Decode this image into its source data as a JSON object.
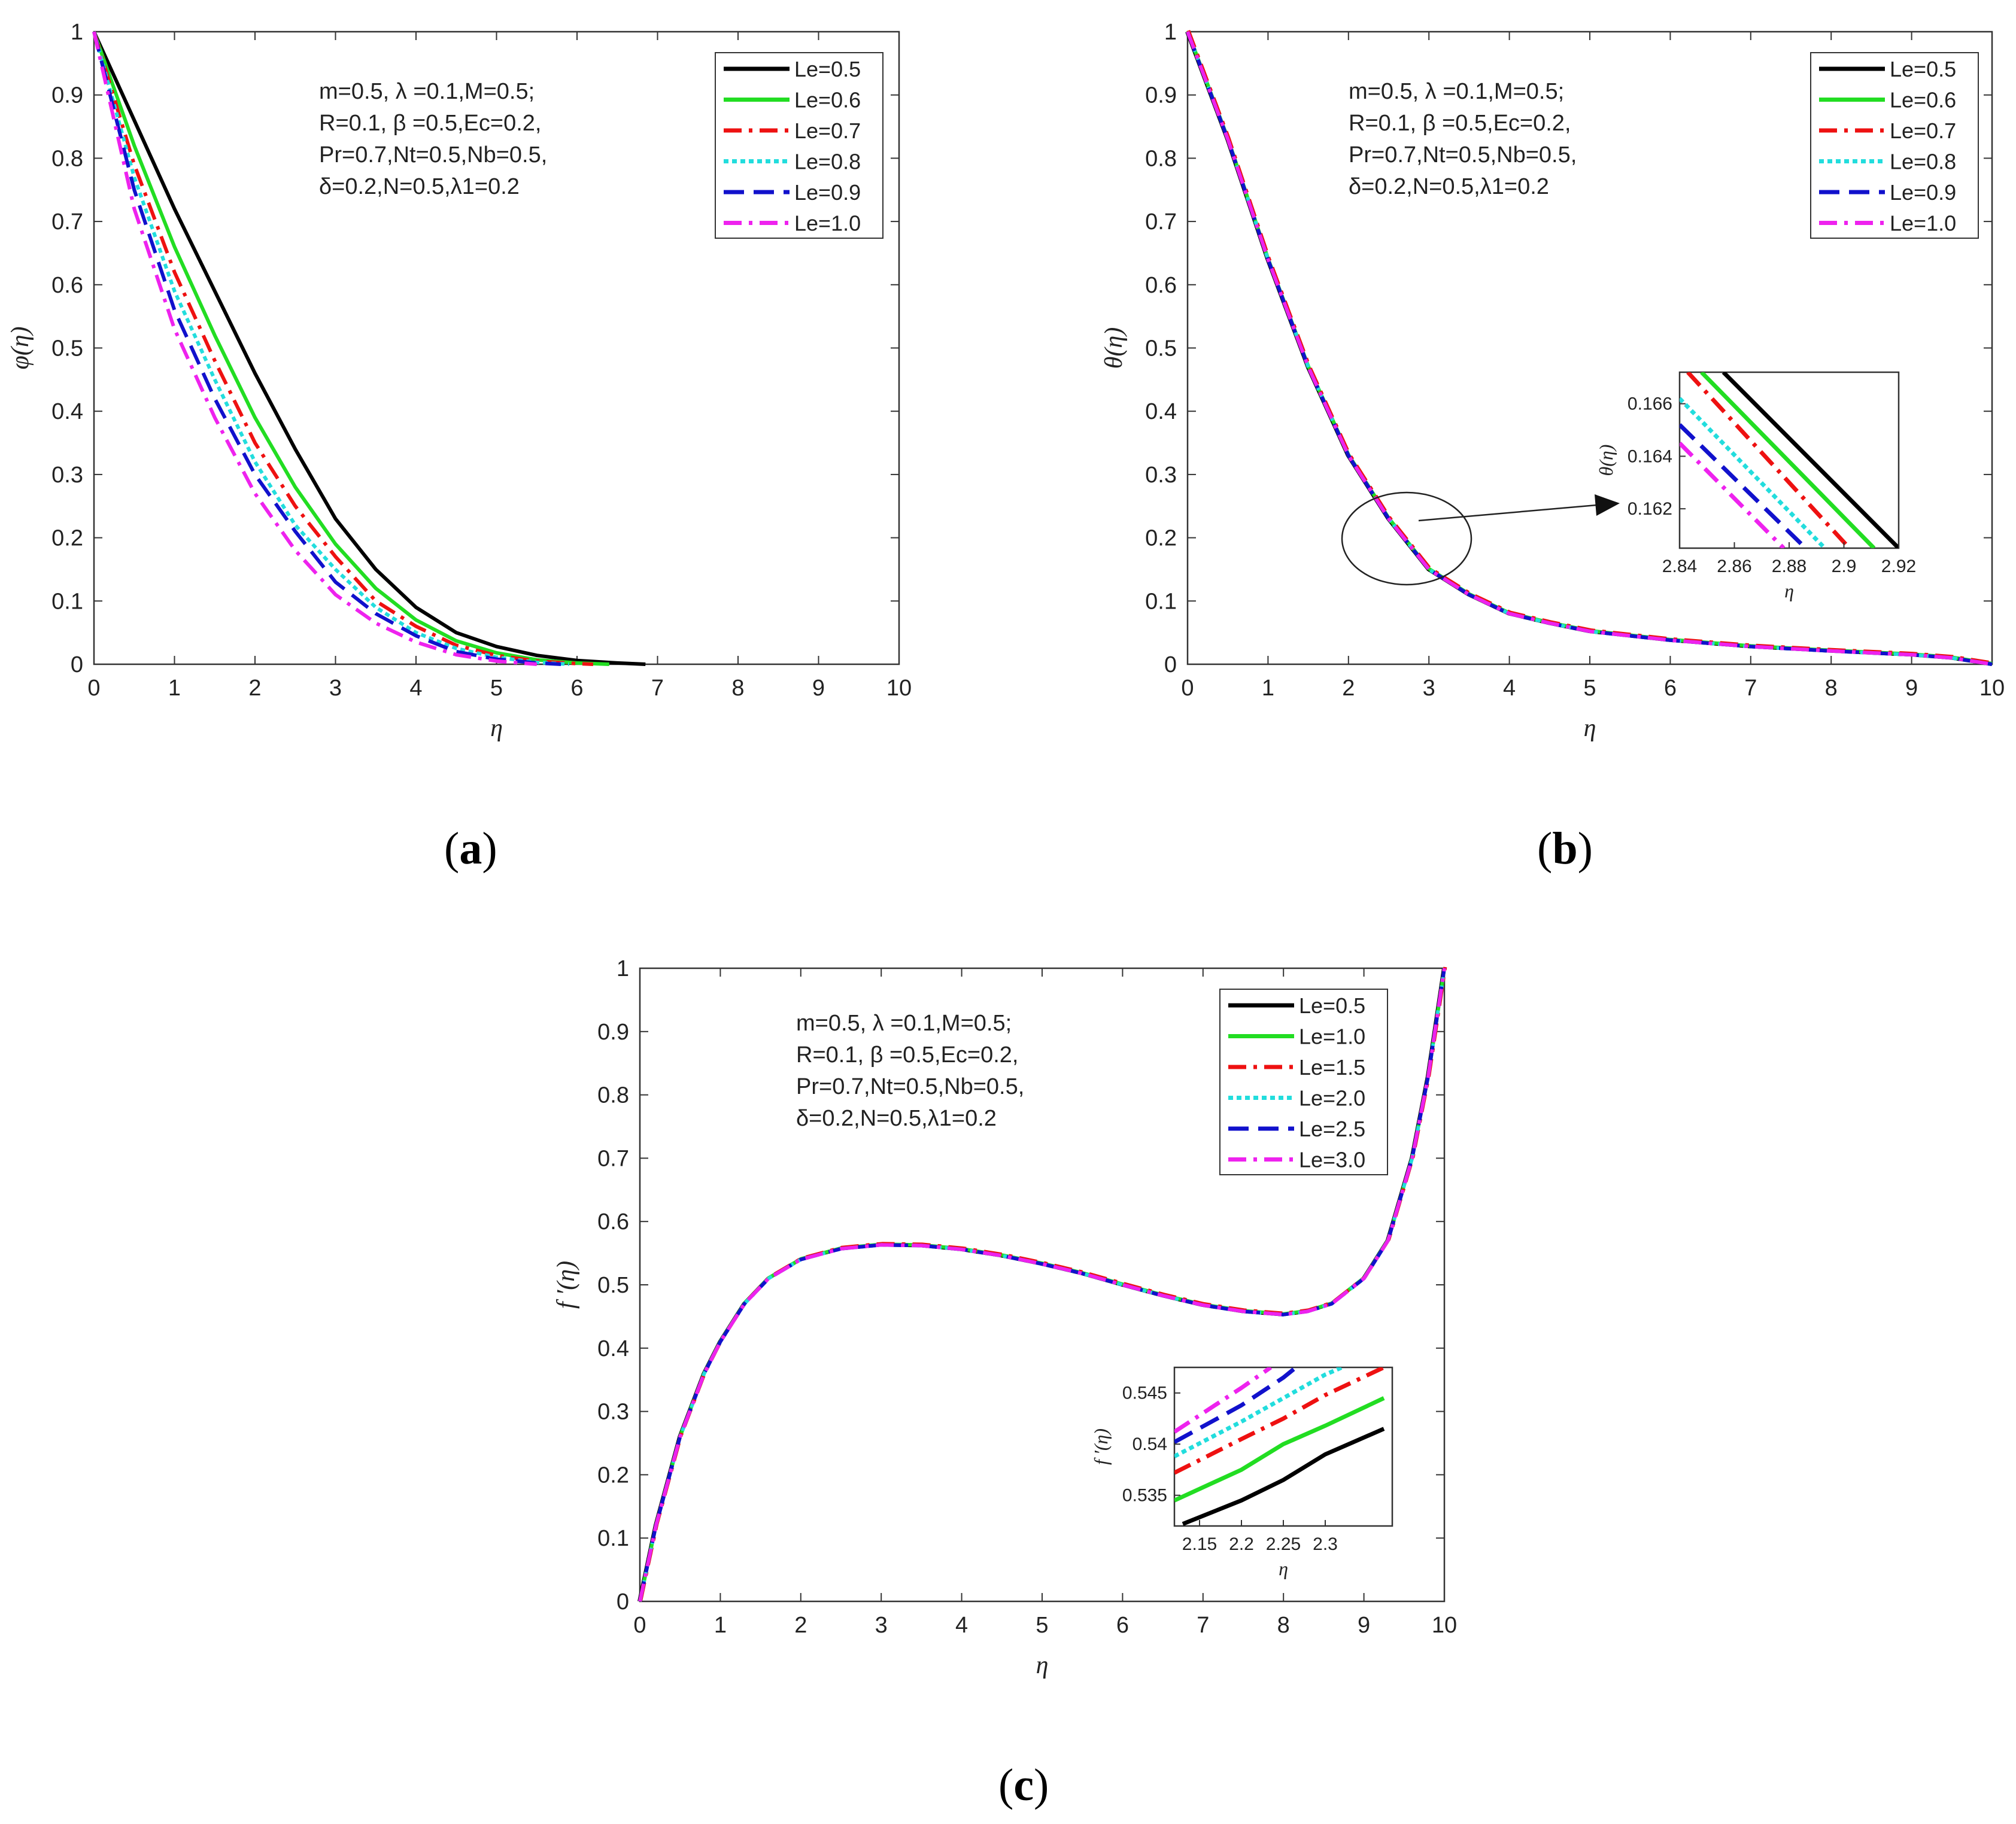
{
  "panels": [
    {
      "label_open": "(",
      "label_letter": "a",
      "label_close": ")"
    },
    {
      "label_open": "(",
      "label_letter": "b",
      "label_close": ")"
    },
    {
      "label_open": "(",
      "label_letter": "c",
      "label_close": ")"
    }
  ],
  "chart_data": [
    {
      "type": "line",
      "panel": "a",
      "title": "",
      "xlabel": "η",
      "ylabel": "φ(η)",
      "xlim": [
        0,
        10
      ],
      "ylim": [
        0,
        1
      ],
      "xticks": [
        "0",
        "1",
        "2",
        "3",
        "4",
        "5",
        "6",
        "7",
        "8",
        "9",
        "10"
      ],
      "yticks": [
        "0",
        "0.1",
        "0.2",
        "0.3",
        "0.4",
        "0.5",
        "0.6",
        "0.7",
        "0.8",
        "0.9",
        "1"
      ],
      "annotation": [
        "m=0.5, λ =0.1,M=0.5;",
        "R=0.1, β =0.5,Ec=0.2,",
        "Pr=0.7,Nt=0.5,Nb=0.5,",
        "δ=0.2,N=0.5,λ1=0.2"
      ],
      "legend_position": "top-right",
      "series": [
        {
          "name": "Le=0.5",
          "color": "#000000",
          "dash": "solid",
          "x": [
            0,
            0.5,
            1,
            1.5,
            2,
            2.5,
            3,
            3.5,
            4,
            4.5,
            5,
            5.5,
            6,
            6.5,
            6.85
          ],
          "y": [
            1,
            0.86,
            0.72,
            0.59,
            0.46,
            0.34,
            0.23,
            0.15,
            0.09,
            0.05,
            0.028,
            0.014,
            0.006,
            0.002,
            0
          ]
        },
        {
          "name": "Le=0.6",
          "color": "#22dd22",
          "dash": "solid",
          "x": [
            0,
            0.5,
            1,
            1.5,
            2,
            2.5,
            3,
            3.5,
            4,
            4.5,
            5,
            5.5,
            6,
            6.4
          ],
          "y": [
            1,
            0.82,
            0.66,
            0.52,
            0.39,
            0.28,
            0.19,
            0.12,
            0.07,
            0.037,
            0.018,
            0.007,
            0.002,
            0
          ]
        },
        {
          "name": "Le=0.7",
          "color": "#ee1111",
          "dash": "dashdot",
          "x": [
            0,
            0.5,
            1,
            1.5,
            2,
            2.5,
            3,
            3.5,
            4,
            4.5,
            5,
            5.5,
            6,
            6.2
          ],
          "y": [
            1,
            0.79,
            0.62,
            0.48,
            0.35,
            0.25,
            0.17,
            0.1,
            0.06,
            0.03,
            0.014,
            0.005,
            0.001,
            0
          ]
        },
        {
          "name": "Le=0.8",
          "color": "#22dddd",
          "dash": "dotted",
          "x": [
            0,
            0.5,
            1,
            1.5,
            2,
            2.5,
            3,
            3.5,
            4,
            4.5,
            5,
            5.5,
            5.9
          ],
          "y": [
            1,
            0.77,
            0.59,
            0.45,
            0.32,
            0.22,
            0.15,
            0.09,
            0.05,
            0.025,
            0.011,
            0.003,
            0
          ]
        },
        {
          "name": "Le=0.9",
          "color": "#1111cc",
          "dash": "dashed",
          "x": [
            0,
            0.5,
            1,
            1.5,
            2,
            2.5,
            3,
            3.5,
            4,
            4.5,
            5,
            5.5,
            5.8
          ],
          "y": [
            1,
            0.75,
            0.56,
            0.42,
            0.3,
            0.21,
            0.13,
            0.08,
            0.045,
            0.02,
            0.008,
            0.002,
            0
          ]
        },
        {
          "name": "Le=1.0",
          "color": "#ee22ee",
          "dash": "dashdot",
          "x": [
            0,
            0.5,
            1,
            1.5,
            2,
            2.5,
            3,
            3.5,
            4,
            4.5,
            5,
            5.5
          ],
          "y": [
            1,
            0.72,
            0.53,
            0.39,
            0.27,
            0.18,
            0.11,
            0.065,
            0.035,
            0.015,
            0.005,
            0
          ]
        }
      ]
    },
    {
      "type": "line",
      "panel": "b",
      "title": "",
      "xlabel": "η",
      "ylabel": "θ(η)",
      "xlim": [
        0,
        10
      ],
      "ylim": [
        0,
        1
      ],
      "xticks": [
        "0",
        "1",
        "2",
        "3",
        "4",
        "5",
        "6",
        "7",
        "8",
        "9",
        "10"
      ],
      "yticks": [
        "0",
        "0.1",
        "0.2",
        "0.3",
        "0.4",
        "0.5",
        "0.6",
        "0.7",
        "0.8",
        "0.9",
        "1"
      ],
      "annotation": [
        "m=0.5, λ =0.1,M=0.5;",
        "R=0.1, β =0.5,Ec=0.2,",
        "Pr=0.7,Nt=0.5,Nb=0.5,",
        "δ=0.2,N=0.5,λ1=0.2"
      ],
      "legend_position": "top-right",
      "series": [
        {
          "name": "Le=0.5",
          "color": "#000000",
          "dash": "solid"
        },
        {
          "name": "Le=0.6",
          "color": "#22dd22",
          "dash": "solid"
        },
        {
          "name": "Le=0.7",
          "color": "#ee1111",
          "dash": "dashdot"
        },
        {
          "name": "Le=0.8",
          "color": "#22dddd",
          "dash": "dotted"
        },
        {
          "name": "Le=0.9",
          "color": "#1111cc",
          "dash": "dashed"
        },
        {
          "name": "Le=1.0",
          "color": "#ee22ee",
          "dash": "dashdot"
        }
      ],
      "common_curve": {
        "x": [
          0,
          0.5,
          1,
          1.5,
          2,
          2.5,
          3,
          3.5,
          4,
          4.5,
          5,
          6,
          7,
          8,
          9,
          9.5,
          10
        ],
        "y": [
          1,
          0.83,
          0.64,
          0.47,
          0.33,
          0.23,
          0.15,
          0.11,
          0.08,
          0.065,
          0.052,
          0.038,
          0.028,
          0.021,
          0.015,
          0.01,
          0
        ]
      },
      "inset": {
        "xlabel": "η",
        "ylabel": "θ(η)",
        "xlim": [
          2.84,
          2.92
        ],
        "ylim": [
          0.1605,
          0.1672
        ],
        "xticks": [
          "2.84",
          "2.86",
          "2.88",
          "2.9",
          "2.92"
        ],
        "yticks": [
          "0.162",
          "0.164",
          "0.166"
        ],
        "xtick_values": [
          2.84,
          2.86,
          2.88,
          2.9,
          2.92
        ],
        "ytick_values": [
          0.162,
          0.164,
          0.166
        ],
        "lines": [
          {
            "x": [
              2.856,
              2.92
            ],
            "y": [
              0.1672,
              0.1605
            ]
          },
          {
            "x": [
              2.848,
              2.911
            ],
            "y": [
              0.1672,
              0.1605
            ]
          },
          {
            "x": [
              2.843,
              2.902
            ],
            "y": [
              0.1672,
              0.1605
            ]
          },
          {
            "x": [
              2.84,
              2.893
            ],
            "y": [
              0.1662,
              0.1605
            ]
          },
          {
            "x": [
              2.84,
              2.886
            ],
            "y": [
              0.1652,
              0.1605
            ]
          },
          {
            "x": [
              2.84,
              2.878
            ],
            "y": [
              0.1645,
              0.1605
            ]
          }
        ]
      }
    },
    {
      "type": "line",
      "panel": "c",
      "title": "",
      "xlabel": "η",
      "ylabel": "f ′(η)",
      "xlim": [
        0,
        10
      ],
      "ylim": [
        0,
        1
      ],
      "xticks": [
        "0",
        "1",
        "2",
        "3",
        "4",
        "5",
        "6",
        "7",
        "8",
        "9",
        "10"
      ],
      "yticks": [
        "0",
        "0.1",
        "0.2",
        "0.3",
        "0.4",
        "0.5",
        "0.6",
        "0.7",
        "0.8",
        "0.9",
        "1"
      ],
      "annotation": [
        "m=0.5, λ =0.1,M=0.5;",
        "R=0.1, β =0.5,Ec=0.2,",
        "Pr=0.7,Nt=0.5,Nb=0.5,",
        "δ=0.2,N=0.5,λ1=0.2"
      ],
      "legend_position": "top-right",
      "series": [
        {
          "name": "Le=0.5",
          "color": "#000000",
          "dash": "solid"
        },
        {
          "name": "Le=1.0",
          "color": "#22dd22",
          "dash": "solid"
        },
        {
          "name": "Le=1.5",
          "color": "#ee1111",
          "dash": "dashdot"
        },
        {
          "name": "Le=2.0",
          "color": "#22dddd",
          "dash": "dotted"
        },
        {
          "name": "Le=2.5",
          "color": "#1111cc",
          "dash": "dashed"
        },
        {
          "name": "Le=3.0",
          "color": "#ee22ee",
          "dash": "dashdot"
        }
      ],
      "common_curve": {
        "x": [
          0,
          0.2,
          0.5,
          0.8,
          1,
          1.3,
          1.6,
          2,
          2.5,
          3,
          3.5,
          4,
          4.5,
          5,
          5.5,
          6,
          6.5,
          7,
          7.5,
          8,
          8.3,
          8.6,
          9,
          9.3,
          9.6,
          9.8,
          10
        ],
        "y": [
          0,
          0.12,
          0.26,
          0.36,
          0.41,
          0.47,
          0.51,
          0.54,
          0.557,
          0.563,
          0.562,
          0.556,
          0.546,
          0.533,
          0.518,
          0.5,
          0.483,
          0.468,
          0.458,
          0.453,
          0.458,
          0.47,
          0.51,
          0.57,
          0.7,
          0.83,
          1
        ]
      },
      "inset": {
        "xlabel": "η",
        "ylabel": "f ′(η)",
        "xlim": [
          2.12,
          2.38
        ],
        "ylim": [
          0.532,
          0.5475
        ],
        "xticks": [
          "2.15",
          "2.2",
          "2.25",
          "2.3"
        ],
        "yticks": [
          "0.535",
          "0.54",
          "0.545"
        ],
        "xtick_values": [
          2.15,
          2.2,
          2.25,
          2.3
        ],
        "ytick_values": [
          0.535,
          0.54,
          0.545
        ],
        "lines": [
          {
            "x": [
              2.13,
              2.2,
              2.25,
              2.3,
              2.37
            ],
            "y": [
              0.5322,
              0.5345,
              0.5365,
              0.539,
              0.5415
            ]
          },
          {
            "x": [
              2.12,
              2.2,
              2.25,
              2.3,
              2.37
            ],
            "y": [
              0.5345,
              0.5375,
              0.54,
              0.5418,
              0.5445
            ]
          },
          {
            "x": [
              2.12,
              2.2,
              2.25,
              2.3,
              2.37
            ],
            "y": [
              0.5372,
              0.5405,
              0.5425,
              0.5448,
              0.5475
            ]
          },
          {
            "x": [
              2.12,
              2.2,
              2.25,
              2.3,
              2.32
            ],
            "y": [
              0.5388,
              0.5422,
              0.5445,
              0.5468,
              0.5475
            ]
          },
          {
            "x": [
              2.12,
              2.2,
              2.25,
              2.265
            ],
            "y": [
              0.5402,
              0.5438,
              0.5465,
              0.5475
            ]
          },
          {
            "x": [
              2.12,
              2.2,
              2.235
            ],
            "y": [
              0.5412,
              0.5455,
              0.5475
            ]
          }
        ]
      }
    }
  ]
}
